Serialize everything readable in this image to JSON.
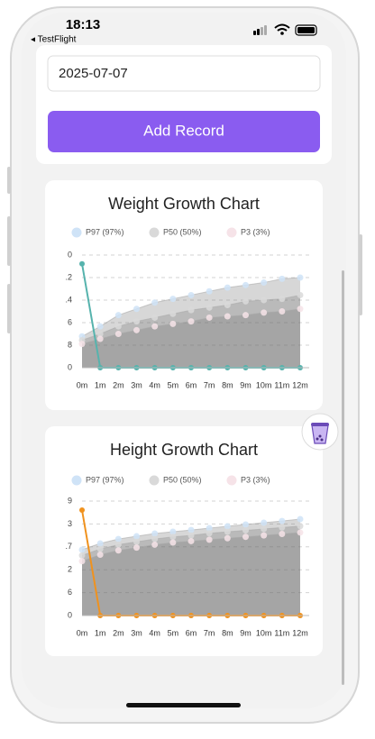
{
  "status_bar": {
    "time": "18:13",
    "back": "◂ TestFlight"
  },
  "form": {
    "date": "2025-07-07",
    "button": "Add Record"
  },
  "chart_data": [
    {
      "type": "line",
      "title": "Weight Growth Chart",
      "categories": [
        "0m",
        "1m",
        "2m",
        "3m",
        "4m",
        "5m",
        "6m",
        "7m",
        "8m",
        "9m",
        "10m",
        "11m",
        "12m"
      ],
      "series": [
        {
          "name": "P97 (97%)",
          "color": "#cfe3f7",
          "values": [
            2.5,
            3.3,
            4.2,
            4.7,
            5.2,
            5.5,
            5.8,
            6.1,
            6.4,
            6.6,
            6.8,
            7.1,
            7.2
          ]
        },
        {
          "name": "P50 (50%)",
          "color": "#d9d9d9",
          "values": [
            2.2,
            2.7,
            3.3,
            3.7,
            4.0,
            4.3,
            4.6,
            4.8,
            5.0,
            5.3,
            5.4,
            5.5,
            5.8
          ]
        },
        {
          "name": "P3 (3%)",
          "color": "#f6e3e8",
          "values": [
            1.9,
            2.3,
            2.7,
            3.0,
            3.3,
            3.5,
            3.7,
            4.0,
            4.1,
            4.2,
            4.4,
            4.5,
            4.7
          ]
        },
        {
          "color": "#56b3ad",
          "values": [
            8.3,
            0,
            0,
            0,
            0,
            0,
            0,
            0,
            0,
            0,
            0,
            0,
            0
          ]
        }
      ],
      "ylim": [
        0,
        9
      ],
      "yticks": [
        0,
        {
          "value": 1.8,
          "label": "8"
        },
        {
          "value": 3.6,
          "label": "6"
        },
        {
          "value": 5.4,
          "label": ".4"
        },
        {
          "value": 7.2,
          "label": ".2"
        },
        {
          "value": 9,
          "label": "0"
        }
      ],
      "grid": true
    },
    {
      "type": "line",
      "title": "Height Growth Chart",
      "categories": [
        "0m",
        "1m",
        "2m",
        "3m",
        "4m",
        "5m",
        "6m",
        "7m",
        "8m",
        "9m",
        "10m",
        "11m",
        "12m"
      ],
      "series": [
        {
          "name": "P97 (97%)",
          "color": "#cfe3f7",
          "values": [
            46,
            50.4,
            53.5,
            55.4,
            57.3,
            58.6,
            59.8,
            61.1,
            62.4,
            63.6,
            64.9,
            66.1,
            67.4
          ]
        },
        {
          "name": "P50 (50%)",
          "color": "#d9d9d9",
          "values": [
            42,
            46.5,
            49.5,
            51.5,
            53.5,
            55,
            56,
            57.5,
            58.5,
            59.5,
            60.5,
            61.5,
            62.5
          ]
        },
        {
          "name": "P3 (3%)",
          "color": "#f6e3e8",
          "values": [
            38,
            42.5,
            45.5,
            47.5,
            49.5,
            51,
            52,
            53,
            54,
            55,
            56,
            57,
            58
          ]
        },
        {
          "color": "#f0921e",
          "values": [
            73.7,
            0,
            0,
            0,
            0,
            0,
            0,
            0,
            0,
            0,
            0,
            0,
            0
          ]
        }
      ],
      "ylim": [
        0,
        80
      ],
      "yticks": [
        0,
        {
          "value": 16,
          "label": "6"
        },
        {
          "value": 32,
          "label": "2"
        },
        {
          "value": 48,
          "label": ".7"
        },
        {
          "value": 64,
          "label": "3"
        },
        {
          "value": 80,
          "label": "9"
        }
      ],
      "grid": true
    }
  ]
}
